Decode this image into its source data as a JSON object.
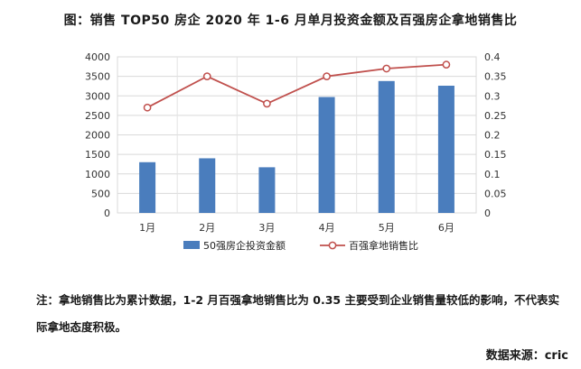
{
  "title": "图：销售 TOP50 房企 2020 年 1-6 月单月投资金额及百强房企拿地销售比",
  "note": "注：拿地销售比为累计数据，1-2 月百强拿地销售比为 0.35 主要受到企业销售量较低的影响，不代表实际拿地态度积极。",
  "source": "数据来源：cric",
  "chart_data": {
    "type": "bar+line",
    "categories": [
      "1月",
      "2月",
      "3月",
      "4月",
      "5月",
      "6月"
    ],
    "series": [
      {
        "name": "50强房企投资金额",
        "type": "bar",
        "axis": "left",
        "color": "#4a7dbd",
        "values": [
          1300,
          1400,
          1170,
          2970,
          3380,
          3260
        ]
      },
      {
        "name": "百强拿地销售比",
        "type": "line",
        "axis": "right",
        "color": "#c0504d",
        "values": [
          0.27,
          0.35,
          0.28,
          0.35,
          0.37,
          0.38
        ]
      }
    ],
    "y_left": {
      "min": 0,
      "max": 4000,
      "step": 500,
      "ticks": [
        "0",
        "500",
        "1000",
        "1500",
        "2000",
        "2500",
        "3000",
        "3500",
        "4000"
      ]
    },
    "y_right": {
      "min": 0,
      "max": 0.4,
      "step": 0.05,
      "ticks": [
        "0",
        "0.05",
        "0.1",
        "0.15",
        "0.2",
        "0.25",
        "0.3",
        "0.35",
        "0.4"
      ]
    },
    "grid": true,
    "legend_position": "bottom"
  }
}
